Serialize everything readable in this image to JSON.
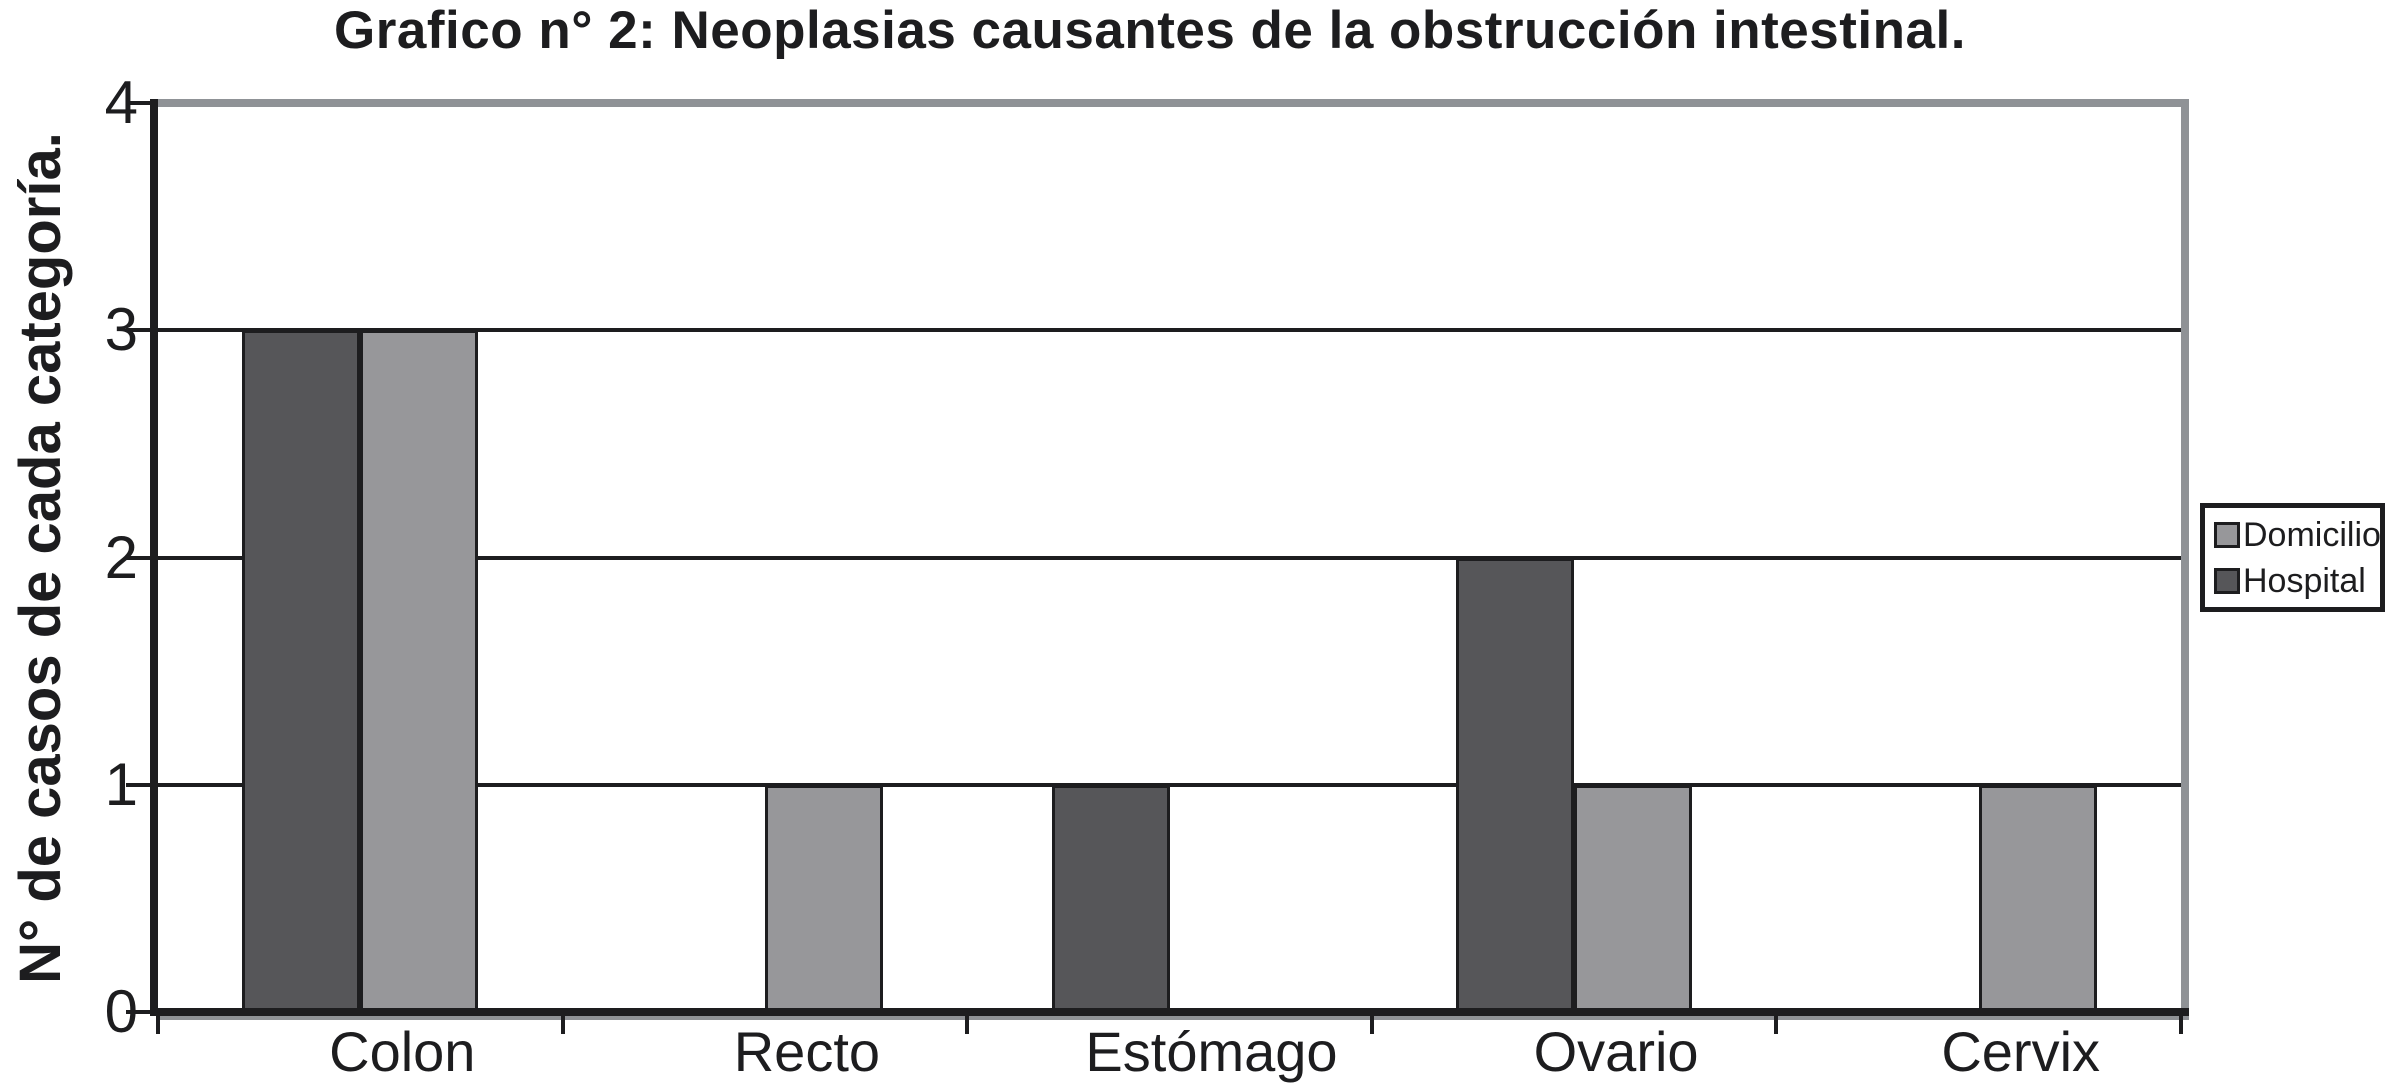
{
  "chart_data": {
    "type": "bar",
    "title": "Grafico n° 2: Neoplasias causantes de la obstrucción intestinal.",
    "ylabel": "N° de casos de cada categoría.",
    "xlabel": "",
    "categories": [
      "Colon",
      "Recto",
      "Estómago",
      "Ovario",
      "Cervix"
    ],
    "series": [
      {
        "name": "Hospital",
        "color": "#565659",
        "values": [
          3,
          0,
          1,
          2,
          0
        ]
      },
      {
        "name": "Domicilio",
        "color": "#97979A",
        "values": [
          3,
          1,
          0,
          1,
          1
        ]
      }
    ],
    "legend_entries": [
      {
        "label": "Domicilio",
        "color": "#97979A"
      },
      {
        "label": "Hospital",
        "color": "#565659"
      }
    ],
    "legend_position": "right",
    "ylim": [
      0,
      4
    ],
    "yticks": [
      0,
      1,
      2,
      3,
      4
    ],
    "grid": true
  },
  "colors": {
    "axis": "#1d1d1f",
    "frame_shadow": "#8f9296",
    "background": "#ffffff"
  }
}
